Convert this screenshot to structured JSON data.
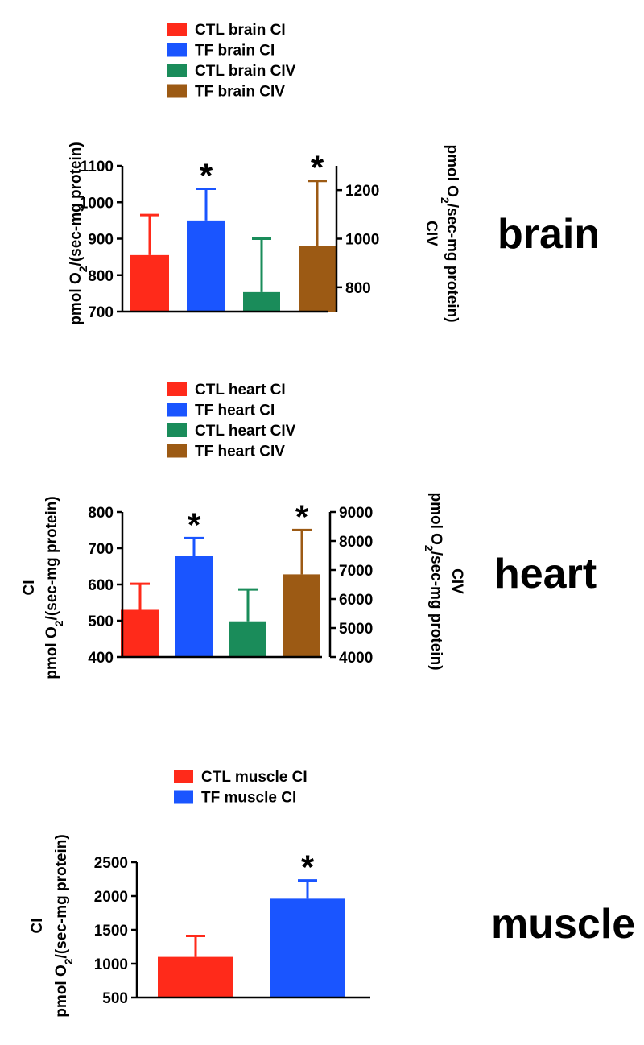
{
  "chart_data": [
    {
      "type": "bar",
      "panel_label": "brain",
      "legend": [
        "CTL brain CI",
        "TF brain CI",
        "CTL brain CIV",
        "TF brain CIV"
      ],
      "colors": [
        "#ff2a1a",
        "#1a55ff",
        "#1a8c5a",
        "#9c5a14"
      ],
      "left_axis": {
        "label_line1": "",
        "label_line2": "pmol O2/(sec-mg protein)",
        "ylim": [
          700,
          1100
        ],
        "ticks": [
          "700",
          "800",
          "900",
          "1000",
          "1100"
        ]
      },
      "right_axis": {
        "label_line1": "CIV",
        "label_line2": "pmol O2/sec-mg protein)",
        "ylim": [
          700,
          1300
        ],
        "ticks": [
          "800",
          "1000",
          "1200"
        ]
      },
      "bars": [
        {
          "name": "CTL brain CI",
          "axis": "left",
          "value": 855,
          "error": 110,
          "significant": false
        },
        {
          "name": "TF brain CI",
          "axis": "left",
          "value": 950,
          "error": 87,
          "significant": true
        },
        {
          "name": "CTL brain CIV",
          "axis": "right",
          "value": 780,
          "error": 220,
          "significant": false
        },
        {
          "name": "TF brain CIV",
          "axis": "right",
          "value": 970,
          "error": 268,
          "significant": true
        }
      ],
      "star": "*"
    },
    {
      "type": "bar",
      "panel_label": "heart",
      "legend": [
        "CTL heart CI",
        "TF heart CI",
        "CTL heart CIV",
        "TF heart CIV"
      ],
      "colors": [
        "#ff2a1a",
        "#1a55ff",
        "#1a8c5a",
        "#9c5a14"
      ],
      "left_axis": {
        "label_line1": "CI",
        "label_line2": "pmol O2/(sec-mg protein)",
        "ylim": [
          400,
          800
        ],
        "ticks": [
          "400",
          "500",
          "600",
          "700",
          "800"
        ]
      },
      "right_axis": {
        "label_line1": "CIV",
        "label_line2": "pmol O2/sec-mg protein)",
        "ylim": [
          4000,
          9000
        ],
        "ticks": [
          "4000",
          "5000",
          "6000",
          "7000",
          "8000",
          "9000"
        ]
      },
      "bars": [
        {
          "name": "CTL heart CI",
          "axis": "left",
          "value": 530,
          "error": 72,
          "significant": false
        },
        {
          "name": "TF heart CI",
          "axis": "left",
          "value": 680,
          "error": 48,
          "significant": true
        },
        {
          "name": "CTL heart CIV",
          "axis": "right",
          "value": 5230,
          "error": 1100,
          "significant": false
        },
        {
          "name": "TF heart CIV",
          "axis": "right",
          "value": 6850,
          "error": 1530,
          "significant": true
        }
      ],
      "star": "*"
    },
    {
      "type": "bar",
      "panel_label": "muscle",
      "legend": [
        "CTL muscle CI",
        "TF muscle CI"
      ],
      "colors": [
        "#ff2a1a",
        "#1a55ff"
      ],
      "left_axis": {
        "label_line1": "CI",
        "label_line2": "pmol O2/(sec-mg protein)",
        "ylim": [
          500,
          2500
        ],
        "ticks": [
          "500",
          "1000",
          "1500",
          "2000",
          "2500"
        ]
      },
      "bars": [
        {
          "name": "CTL muscle CI",
          "axis": "left",
          "value": 1100,
          "error": 310,
          "significant": false
        },
        {
          "name": "TF muscle CI",
          "axis": "left",
          "value": 1960,
          "error": 270,
          "significant": true
        }
      ],
      "star": "*"
    }
  ]
}
